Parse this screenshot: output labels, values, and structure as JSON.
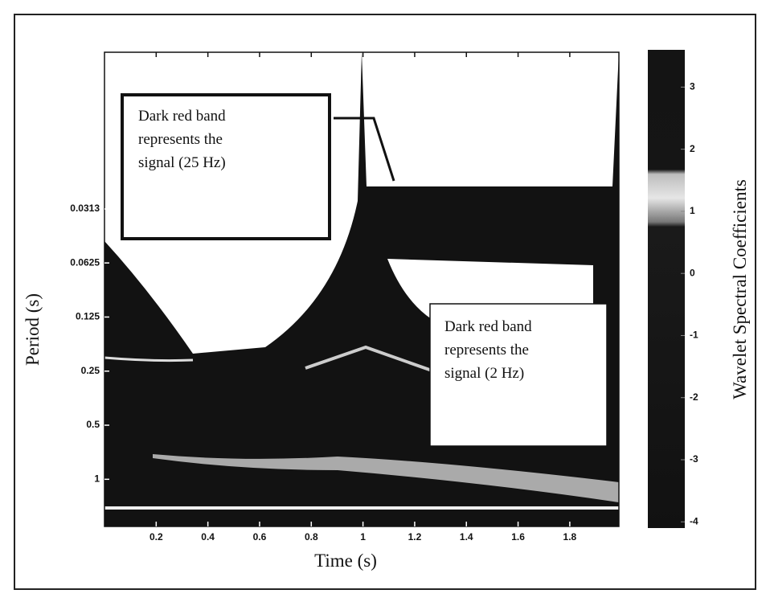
{
  "chart_data": {
    "type": "heatmap",
    "xlabel": "Time (s)",
    "ylabel": "Period (s)",
    "xlim": [
      0,
      1.99
    ],
    "xticks": [
      0.2,
      0.4,
      0.6,
      0.8,
      1,
      1.2,
      1.4,
      1.6,
      1.8
    ],
    "ylim": [
      0.0042,
      1.83
    ],
    "yscale": "log",
    "yinvert": true,
    "yticks": [
      0.0313,
      0.0625,
      0.125,
      0.25,
      0.5,
      1
    ],
    "colorbar": {
      "label": "Wavelet Spectral Coefficients",
      "ylim": [
        -4.1,
        3.6
      ],
      "yticks": [
        3,
        2,
        1,
        0,
        -1,
        -2,
        -3,
        -4
      ]
    },
    "annotations": [
      {
        "lines": [
          "Dark red band",
          "represents the",
          "signal (25 Hz)"
        ]
      },
      {
        "lines": [
          "Dark red band",
          "represents the",
          "signal (2 Hz)"
        ]
      }
    ]
  }
}
